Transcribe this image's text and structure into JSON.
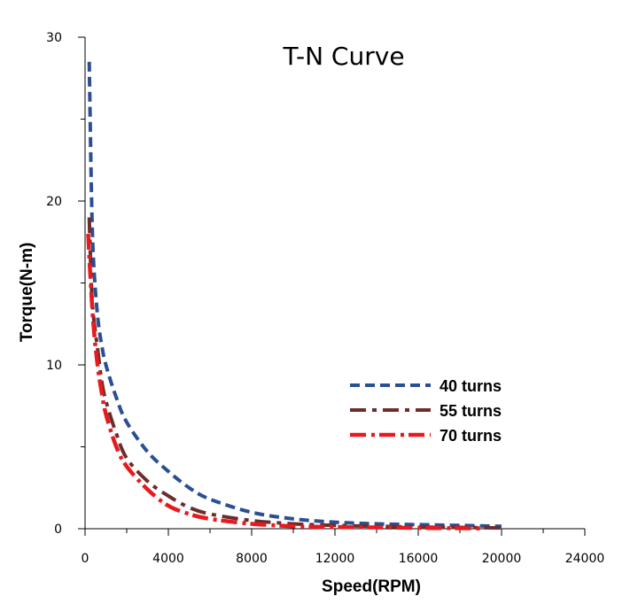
{
  "chart_data": {
    "type": "line",
    "title": "T-N Curve",
    "xlabel": "Speed(RPM)",
    "ylabel": "Torque(N-m)",
    "xlim": [
      0,
      24000
    ],
    "ylim": [
      0,
      30
    ],
    "xticks": [
      0,
      4000,
      8000,
      12000,
      16000,
      20000,
      24000
    ],
    "xtick_labels": [
      "0",
      "4000",
      "8000",
      "12000",
      "16000",
      "20000",
      "24000"
    ],
    "yticks": [
      0,
      10,
      20,
      30
    ],
    "ytick_labels": [
      "0",
      "10",
      "20",
      "30"
    ],
    "legend_position": "right",
    "series": [
      {
        "name": "40 turns",
        "color": "#2b4f93",
        "x": [
          200,
          300,
          400,
          600,
          800,
          1000,
          1500,
          2000,
          3000,
          4000,
          5000,
          6000,
          8000,
          10000,
          12000,
          14000,
          16000,
          18000,
          20000
        ],
        "y": [
          28.5,
          21,
          16.5,
          13,
          11.2,
          10,
          8,
          6.5,
          4.7,
          3.5,
          2.5,
          1.8,
          1.0,
          0.6,
          0.4,
          0.3,
          0.25,
          0.2,
          0.15
        ]
      },
      {
        "name": "55 turns",
        "color": "#6b2e2c",
        "x": [
          200,
          300,
          400,
          600,
          800,
          1000,
          1500,
          2000,
          3000,
          4000,
          5000,
          6000,
          8000,
          10000,
          12000,
          14000,
          16000,
          18000,
          20000
        ],
        "y": [
          19,
          15,
          13,
          11,
          9,
          7.8,
          5.8,
          4.3,
          2.9,
          2.0,
          1.3,
          0.9,
          0.5,
          0.3,
          0.2,
          0.15,
          0.1,
          0.08,
          0.05
        ]
      },
      {
        "name": "70 turns",
        "color": "#e8191f",
        "x": [
          150,
          250,
          400,
          600,
          800,
          1000,
          1500,
          2000,
          3000,
          4000,
          5000,
          6000,
          8000,
          10000,
          12000,
          14000,
          16000,
          18000,
          19000
        ],
        "y": [
          18,
          15.5,
          12.5,
          10,
          8.3,
          7,
          5,
          3.8,
          2.4,
          1.4,
          0.9,
          0.6,
          0.3,
          0.15,
          0.1,
          0.08,
          0.05,
          0.03,
          0.02
        ]
      }
    ]
  }
}
